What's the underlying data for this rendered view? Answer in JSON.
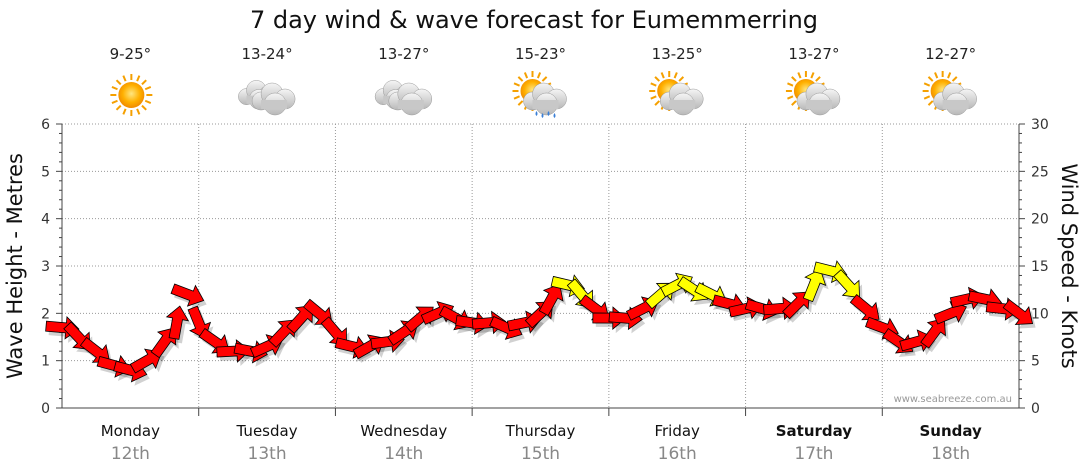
{
  "title": "7 day wind & wave forecast for Eumemmerring",
  "watermark": "www.seabreeze.com.au",
  "days": [
    {
      "name": "Monday",
      "date": "12th",
      "temp": "9-25°",
      "icon": "sun-icon",
      "bold": false
    },
    {
      "name": "Tuesday",
      "date": "13th",
      "temp": "13-24°",
      "icon": "cloud-icon",
      "bold": false
    },
    {
      "name": "Wednesday",
      "date": "14th",
      "temp": "13-27°",
      "icon": "cloud-icon",
      "bold": false
    },
    {
      "name": "Thursday",
      "date": "15th",
      "temp": "15-23°",
      "icon": "sun-cloud-rain-icon",
      "bold": false
    },
    {
      "name": "Friday",
      "date": "16th",
      "temp": "13-25°",
      "icon": "sun-cloud-icon",
      "bold": false
    },
    {
      "name": "Saturday",
      "date": "17th",
      "temp": "13-27°",
      "icon": "sun-cloud-icon",
      "bold": true
    },
    {
      "name": "Sunday",
      "date": "18th",
      "temp": "12-27°",
      "icon": "sun-cloud-icon",
      "bold": true
    }
  ],
  "chart_data": {
    "type": "line",
    "title": "7 day wind & wave forecast for Eumemmerring",
    "y_left_label": "Wave Height - Metres",
    "y_right_label": "Wind Speed - Knots",
    "y_left_range": [
      0,
      6
    ],
    "y_left_ticks": [
      "0",
      "1",
      "2",
      "3",
      "4",
      "5",
      "6"
    ],
    "y_right_range": [
      0,
      30
    ],
    "y_right_ticks": [
      "0",
      "5",
      "10",
      "15",
      "20",
      "25",
      "30"
    ],
    "grid": true,
    "colors": {
      "strong": "#ff0000",
      "moderate": "#ffff00",
      "outline": "#000000"
    },
    "series": [
      {
        "name": "Wind Speed - Knots",
        "day_offset_units": "days from start of Monday 12th",
        "points": [
          [
            0.0,
            8.5
          ],
          [
            0.12,
            7.5
          ],
          [
            0.25,
            6.0
          ],
          [
            0.38,
            4.5
          ],
          [
            0.5,
            4.0
          ],
          [
            0.62,
            5.0
          ],
          [
            0.75,
            7.0
          ],
          [
            0.84,
            9.0
          ],
          [
            0.92,
            12.0
          ],
          [
            1.0,
            9.0
          ],
          [
            1.12,
            7.0
          ],
          [
            1.25,
            6.0
          ],
          [
            1.38,
            6.0
          ],
          [
            1.5,
            6.5
          ],
          [
            1.62,
            8.0
          ],
          [
            1.75,
            9.5
          ],
          [
            1.88,
            10.0
          ],
          [
            2.0,
            8.0
          ],
          [
            2.12,
            6.5
          ],
          [
            2.25,
            6.5
          ],
          [
            2.38,
            7.0
          ],
          [
            2.5,
            8.0
          ],
          [
            2.62,
            9.5
          ],
          [
            2.75,
            10.0
          ],
          [
            2.88,
            9.5
          ],
          [
            3.0,
            9.0
          ],
          [
            3.12,
            9.0
          ],
          [
            3.25,
            8.5
          ],
          [
            3.38,
            9.0
          ],
          [
            3.5,
            10.0
          ],
          [
            3.58,
            11.5
          ],
          [
            3.7,
            13.0
          ],
          [
            3.8,
            12.0
          ],
          [
            3.9,
            10.5
          ],
          [
            4.0,
            9.5
          ],
          [
            4.12,
            9.5
          ],
          [
            4.25,
            10.5
          ],
          [
            4.38,
            12.0
          ],
          [
            4.5,
            13.0
          ],
          [
            4.62,
            12.5
          ],
          [
            4.75,
            12.0
          ],
          [
            4.88,
            11.0
          ],
          [
            5.0,
            10.5
          ],
          [
            5.12,
            10.5
          ],
          [
            5.25,
            10.5
          ],
          [
            5.38,
            11.0
          ],
          [
            5.5,
            13.0
          ],
          [
            5.62,
            14.5
          ],
          [
            5.75,
            13.0
          ],
          [
            5.88,
            10.5
          ],
          [
            6.0,
            8.5
          ],
          [
            6.12,
            7.0
          ],
          [
            6.25,
            7.0
          ],
          [
            6.38,
            8.0
          ],
          [
            6.5,
            10.0
          ],
          [
            6.62,
            11.5
          ],
          [
            6.75,
            11.5
          ],
          [
            6.88,
            10.5
          ],
          [
            7.0,
            10.0
          ]
        ]
      }
    ]
  }
}
